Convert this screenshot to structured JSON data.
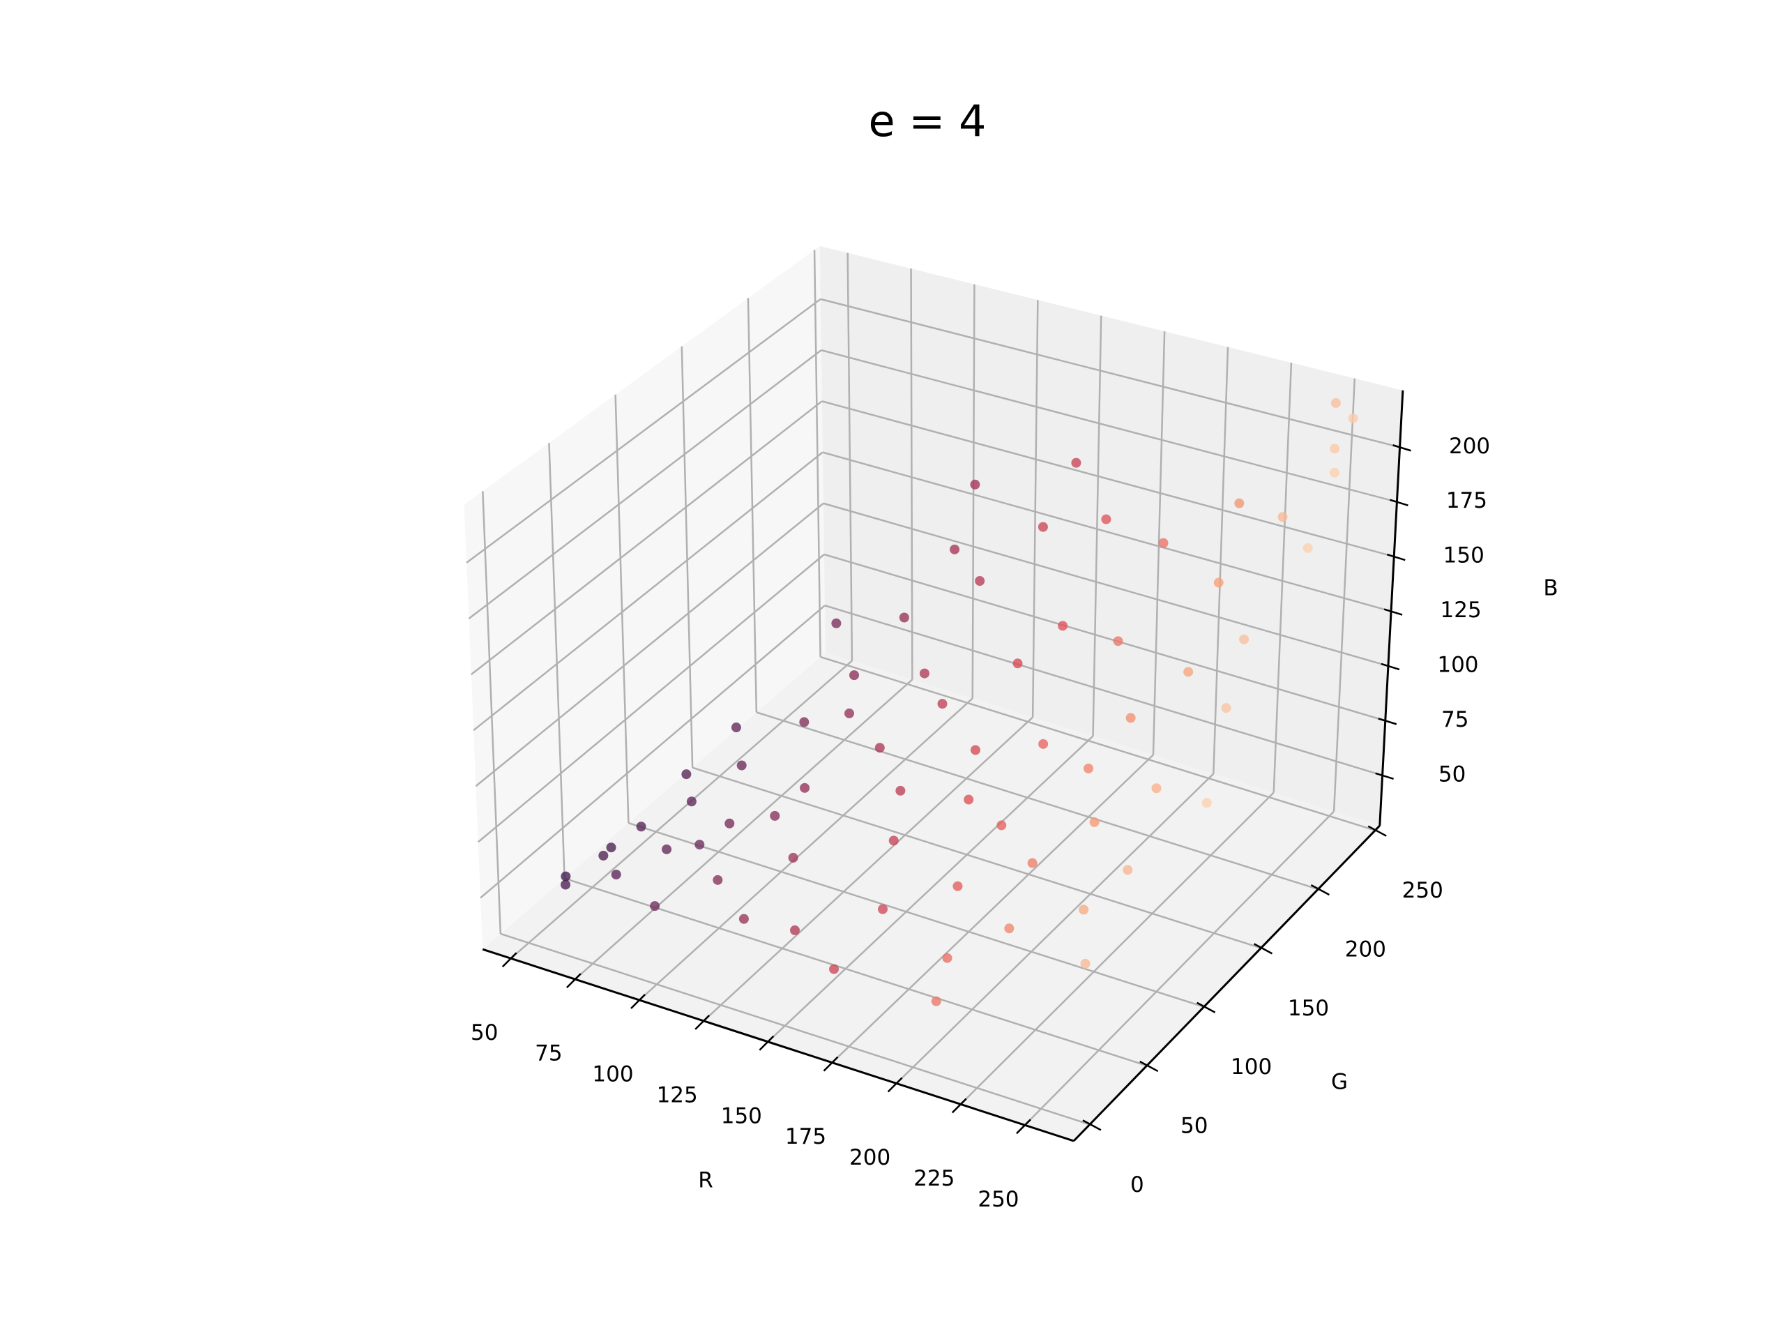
{
  "chart_data": {
    "type": "scatter3d",
    "title": "e = 4",
    "xlabel": "R",
    "ylabel": "G",
    "zlabel": "B",
    "xlim": [
      39,
      269
    ],
    "ylim": [
      -14,
      254
    ],
    "zlim": [
      27,
      226
    ],
    "xticks": [
      50,
      75,
      100,
      125,
      150,
      175,
      200,
      225,
      250
    ],
    "yticks": [
      0,
      50,
      100,
      150,
      200,
      250
    ],
    "zticks": [
      50,
      75,
      100,
      125,
      150,
      175,
      200
    ],
    "grid": true,
    "colormap": [
      "#3d1d4f",
      "#6b2f5f",
      "#a83a5a",
      "#e0525a",
      "#f5a07a",
      "#fde6c8"
    ],
    "series": [
      {
        "x": [
          55,
          60,
          65,
          70,
          75,
          80,
          85,
          90,
          95,
          100,
          105,
          110,
          115,
          120,
          125,
          130,
          135,
          140,
          145,
          150,
          155,
          160,
          165,
          170,
          175,
          180,
          185,
          190,
          195,
          200,
          205,
          210,
          215,
          220,
          225,
          230,
          235,
          240,
          245,
          250,
          255,
          248,
          252,
          238,
          228,
          218,
          208,
          198,
          188,
          178,
          168,
          158,
          148,
          138,
          128,
          118,
          108,
          98,
          88,
          78,
          68,
          58,
          50,
          120,
          160,
          200,
          240,
          255,
          255,
          245
        ],
        "y": [
          20,
          40,
          60,
          30,
          80,
          50,
          100,
          20,
          70,
          120,
          40,
          140,
          90,
          160,
          60,
          180,
          110,
          30,
          170,
          130,
          80,
          190,
          50,
          150,
          100,
          200,
          70,
          130,
          40,
          170,
          90,
          60,
          150,
          110,
          200,
          80,
          130,
          220,
          180,
          240,
          210,
          160,
          250,
          100,
          170,
          230,
          130,
          210,
          100,
          170,
          120,
          220,
          100,
          140,
          200,
          120,
          80,
          150,
          60,
          110,
          90,
          50,
          30,
          30,
          20,
          20,
          60,
          130,
          230,
          250
        ],
        "z": [
          45,
          50,
          55,
          50,
          60,
          55,
          70,
          48,
          62,
          85,
          55,
          100,
          75,
          120,
          62,
          145,
          90,
          50,
          140,
          105,
          70,
          160,
          58,
          120,
          85,
          165,
          65,
          100,
          52,
          130,
          72,
          60,
          110,
          85,
          150,
          65,
          95,
          175,
          140,
          200,
          170,
          120,
          210,
          75,
          125,
          170,
          95,
          155,
          78,
          130,
          95,
          175,
          80,
          110,
          165,
          95,
          65,
          115,
          55,
          80,
          65,
          48,
          42,
          48,
          45,
          45,
          55,
          95,
          195,
          215
        ]
      }
    ]
  }
}
